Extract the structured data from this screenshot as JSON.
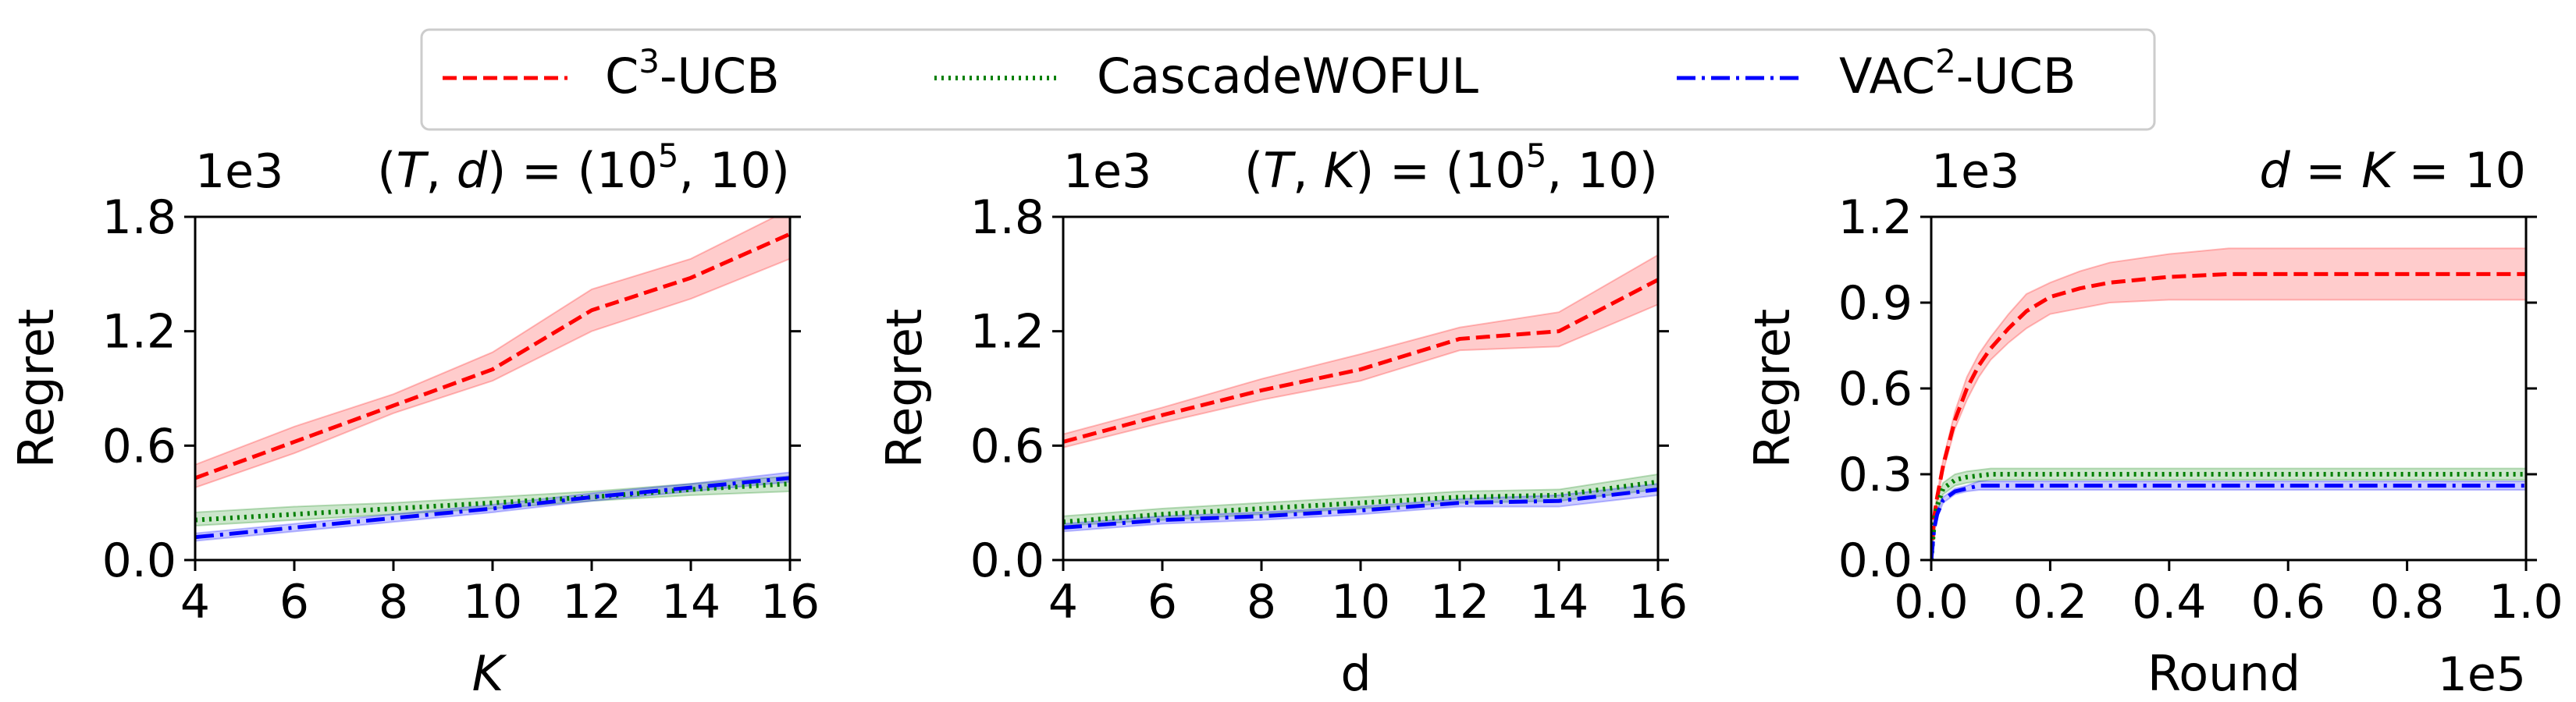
{
  "legend": {
    "items": [
      {
        "label_base": "C",
        "label_sup": "3",
        "label_tail": "-UCB",
        "color": "#ff0000",
        "dash": "dashed"
      },
      {
        "label_base": "CascadeWOFUL",
        "label_sup": "",
        "label_tail": "",
        "color": "#008000",
        "dash": "dotted"
      },
      {
        "label_base": "VAC",
        "label_sup": "2",
        "label_tail": "-UCB",
        "color": "#0000ff",
        "dash": "dashdot"
      }
    ]
  },
  "chart_data": [
    {
      "type": "line",
      "title": "(T, d) = (10^5, 10)",
      "title_parts": {
        "open": "(",
        "a": "T",
        "comma": ", ",
        "b": "d",
        "mid": ") = (10",
        "exp": "5",
        "close": ", 10)"
      },
      "xlabel": "K",
      "xlabel_italic": true,
      "ylabel": "Regret",
      "y_offset_label": "1e3",
      "x_offset_label": "",
      "xlim": [
        4,
        16
      ],
      "ylim": [
        0,
        1.8
      ],
      "xticks": [
        4,
        6,
        8,
        10,
        12,
        14,
        16
      ],
      "xtick_labels": [
        "4",
        "6",
        "8",
        "10",
        "12",
        "14",
        "16"
      ],
      "yticks": [
        0,
        0.6,
        1.2,
        1.8
      ],
      "ytick_labels": [
        "0.0",
        "0.6",
        "1.2",
        "1.8"
      ],
      "x": [
        4,
        6,
        8,
        10,
        12,
        14,
        16
      ],
      "series": [
        {
          "name": "C3-UCB",
          "values": [
            0.43,
            0.62,
            0.81,
            1.0,
            1.31,
            1.48,
            1.71
          ],
          "lower": [
            0.38,
            0.56,
            0.77,
            0.94,
            1.2,
            1.37,
            1.58
          ],
          "upper": [
            0.5,
            0.7,
            0.87,
            1.09,
            1.42,
            1.58,
            1.84
          ]
        },
        {
          "name": "CascadeWOFUL",
          "values": [
            0.21,
            0.24,
            0.27,
            0.3,
            0.33,
            0.37,
            0.4
          ],
          "lower": [
            0.18,
            0.21,
            0.24,
            0.27,
            0.31,
            0.34,
            0.36
          ],
          "upper": [
            0.25,
            0.28,
            0.3,
            0.33,
            0.36,
            0.4,
            0.44
          ]
        },
        {
          "name": "VAC2-UCB",
          "values": [
            0.12,
            0.17,
            0.22,
            0.27,
            0.33,
            0.38,
            0.43
          ],
          "lower": [
            0.1,
            0.15,
            0.2,
            0.25,
            0.31,
            0.36,
            0.41
          ],
          "upper": [
            0.14,
            0.19,
            0.24,
            0.29,
            0.35,
            0.4,
            0.46
          ]
        }
      ]
    },
    {
      "type": "line",
      "title": "(T, K) = (10^5, 10)",
      "title_parts": {
        "open": "(",
        "a": "T",
        "comma": ", ",
        "b": "K",
        "mid": ") = (10",
        "exp": "5",
        "close": ", 10)"
      },
      "xlabel": "d",
      "xlabel_italic": false,
      "ylabel": "Regret",
      "y_offset_label": "1e3",
      "x_offset_label": "",
      "xlim": [
        4,
        16
      ],
      "ylim": [
        0,
        1.8
      ],
      "xticks": [
        4,
        6,
        8,
        10,
        12,
        14,
        16
      ],
      "xtick_labels": [
        "4",
        "6",
        "8",
        "10",
        "12",
        "14",
        "16"
      ],
      "yticks": [
        0,
        0.6,
        1.2,
        1.8
      ],
      "ytick_labels": [
        "0.0",
        "0.6",
        "1.2",
        "1.8"
      ],
      "x": [
        4,
        6,
        8,
        10,
        12,
        14,
        16
      ],
      "series": [
        {
          "name": "C3-UCB",
          "values": [
            0.62,
            0.76,
            0.89,
            1.0,
            1.16,
            1.2,
            1.47
          ],
          "lower": [
            0.59,
            0.72,
            0.84,
            0.94,
            1.1,
            1.12,
            1.34
          ],
          "upper": [
            0.66,
            0.8,
            0.95,
            1.08,
            1.22,
            1.3,
            1.6
          ]
        },
        {
          "name": "CascadeWOFUL",
          "values": [
            0.2,
            0.24,
            0.27,
            0.3,
            0.33,
            0.34,
            0.41
          ],
          "lower": [
            0.18,
            0.21,
            0.24,
            0.27,
            0.3,
            0.31,
            0.37
          ],
          "upper": [
            0.23,
            0.27,
            0.3,
            0.33,
            0.36,
            0.37,
            0.45
          ]
        },
        {
          "name": "VAC2-UCB",
          "values": [
            0.17,
            0.21,
            0.23,
            0.26,
            0.3,
            0.31,
            0.37
          ],
          "lower": [
            0.15,
            0.19,
            0.21,
            0.24,
            0.28,
            0.28,
            0.34
          ],
          "upper": [
            0.19,
            0.23,
            0.25,
            0.28,
            0.32,
            0.34,
            0.4
          ]
        }
      ]
    },
    {
      "type": "line",
      "title": "d = K = 10",
      "title_parts": {
        "a": "d",
        "eq1": " = ",
        "b": "K",
        "eq2": " = 10"
      },
      "xlabel": "Round",
      "xlabel_italic": false,
      "ylabel": "Regret",
      "y_offset_label": "1e3",
      "x_offset_label": "1e5",
      "xlim": [
        0,
        1.0
      ],
      "ylim": [
        0,
        1.2
      ],
      "xticks": [
        0,
        0.2,
        0.4,
        0.6,
        0.8,
        1.0
      ],
      "xtick_labels": [
        "0.0",
        "0.2",
        "0.4",
        "0.6",
        "0.8",
        "1.0"
      ],
      "yticks": [
        0,
        0.3,
        0.6,
        0.9,
        1.2
      ],
      "ytick_labels": [
        "0.0",
        "0.3",
        "0.6",
        "0.9",
        "1.2"
      ],
      "x": [
        0,
        0.005,
        0.01,
        0.02,
        0.04,
        0.06,
        0.08,
        0.1,
        0.13,
        0.16,
        0.2,
        0.25,
        0.3,
        0.4,
        0.5,
        0.6,
        0.7,
        0.8,
        0.9,
        1.0
      ],
      "series": [
        {
          "name": "C3-UCB",
          "values": [
            0,
            0.15,
            0.22,
            0.33,
            0.49,
            0.6,
            0.68,
            0.74,
            0.81,
            0.87,
            0.92,
            0.95,
            0.97,
            0.99,
            1.0,
            1.0,
            1.0,
            1.0,
            1.0,
            1.0
          ],
          "lower": [
            0,
            0.14,
            0.21,
            0.31,
            0.46,
            0.56,
            0.64,
            0.7,
            0.76,
            0.81,
            0.86,
            0.88,
            0.9,
            0.91,
            0.91,
            0.91,
            0.91,
            0.91,
            0.91,
            0.91
          ],
          "upper": [
            0,
            0.16,
            0.23,
            0.35,
            0.52,
            0.64,
            0.72,
            0.78,
            0.86,
            0.93,
            0.97,
            1.01,
            1.04,
            1.07,
            1.09,
            1.09,
            1.09,
            1.09,
            1.09,
            1.09
          ]
        },
        {
          "name": "CascadeWOFUL",
          "values": [
            0,
            0.13,
            0.19,
            0.25,
            0.28,
            0.29,
            0.295,
            0.3,
            0.3,
            0.3,
            0.3,
            0.3,
            0.3,
            0.3,
            0.3,
            0.3,
            0.3,
            0.3,
            0.3,
            0.3
          ],
          "lower": [
            0,
            0.11,
            0.17,
            0.23,
            0.26,
            0.27,
            0.275,
            0.28,
            0.28,
            0.28,
            0.28,
            0.28,
            0.28,
            0.28,
            0.28,
            0.28,
            0.28,
            0.28,
            0.28,
            0.28
          ],
          "upper": [
            0,
            0.15,
            0.21,
            0.27,
            0.3,
            0.31,
            0.315,
            0.32,
            0.32,
            0.32,
            0.32,
            0.32,
            0.32,
            0.32,
            0.32,
            0.32,
            0.32,
            0.32,
            0.32,
            0.32
          ]
        },
        {
          "name": "VAC2-UCB",
          "values": [
            0,
            0.11,
            0.16,
            0.21,
            0.24,
            0.25,
            0.26,
            0.26,
            0.26,
            0.26,
            0.26,
            0.26,
            0.26,
            0.26,
            0.26,
            0.26,
            0.26,
            0.26,
            0.26,
            0.26
          ],
          "lower": [
            0,
            0.1,
            0.15,
            0.2,
            0.23,
            0.24,
            0.245,
            0.245,
            0.245,
            0.245,
            0.245,
            0.245,
            0.245,
            0.245,
            0.245,
            0.245,
            0.245,
            0.245,
            0.245,
            0.245
          ],
          "upper": [
            0,
            0.12,
            0.17,
            0.22,
            0.25,
            0.26,
            0.275,
            0.275,
            0.275,
            0.275,
            0.275,
            0.275,
            0.275,
            0.275,
            0.275,
            0.275,
            0.275,
            0.275,
            0.275,
            0.275
          ]
        }
      ]
    }
  ]
}
